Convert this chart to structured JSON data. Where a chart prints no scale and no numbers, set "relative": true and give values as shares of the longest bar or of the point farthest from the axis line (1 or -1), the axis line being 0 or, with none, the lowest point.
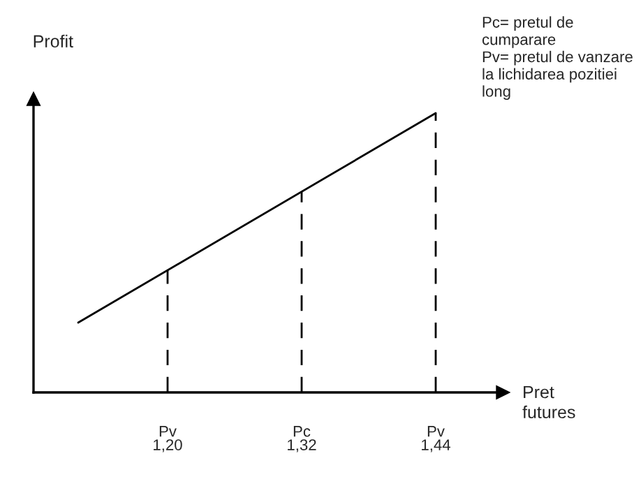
{
  "chart_data": {
    "type": "line",
    "relative": true,
    "xlabel": "Pret\nfutures",
    "ylabel": "Profit",
    "x": [
      1.12,
      1.44
    ],
    "series": [
      {
        "color": "#000000",
        "values": [
          0.25,
          1
        ]
      }
    ],
    "xlim": [
      1.08,
      1.5
    ],
    "xticks": [
      {
        "value": 1.2,
        "label": "1,20"
      },
      {
        "value": 1.32,
        "label": "1,32"
      },
      {
        "value": 1.44,
        "label": "1,44"
      }
    ],
    "ref_lines": [
      {
        "axis": "x",
        "value": 1.2,
        "label": "Pv",
        "color": "#000000",
        "line_style": "dashed"
      },
      {
        "axis": "x",
        "value": 1.32,
        "label": "Pc",
        "color": "#000000",
        "line_style": "dashed"
      },
      {
        "axis": "x",
        "value": 1.44,
        "label": "Pv",
        "color": "#000000",
        "line_style": "dashed"
      }
    ],
    "annotations": [
      "Pc= pretul de\ncumparare\nPv= pretul de vanzare\nla lichidarea pozitiei\nlong"
    ],
    "grid": false,
    "legend": false,
    "marker": "none",
    "line_style": "solid"
  }
}
